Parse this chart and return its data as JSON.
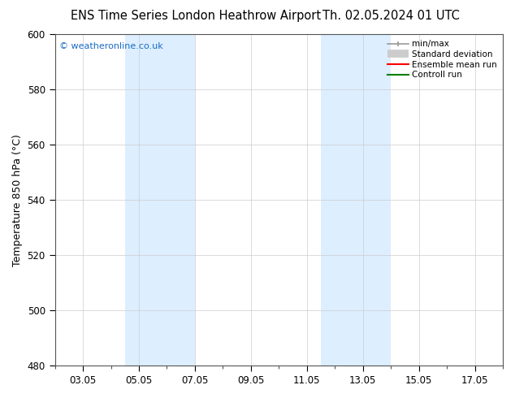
{
  "title_left": "ENS Time Series London Heathrow Airport",
  "title_right": "Th. 02.05.2024 01 UTC",
  "ylabel": "Temperature 850 hPa (°C)",
  "ylim": [
    480,
    600
  ],
  "yticks": [
    480,
    500,
    520,
    540,
    560,
    580,
    600
  ],
  "xtick_labels": [
    "03.05",
    "05.05",
    "07.05",
    "09.05",
    "11.05",
    "13.05",
    "15.05",
    "17.05"
  ],
  "xtick_positions": [
    2,
    4,
    6,
    8,
    10,
    12,
    14,
    16
  ],
  "xlim": [
    1,
    17
  ],
  "shaded_bands": [
    {
      "xstart": 3.5,
      "xend": 6.0,
      "color": "#ddeeff"
    },
    {
      "xstart": 10.5,
      "xend": 13.0,
      "color": "#ddeeff"
    }
  ],
  "watermark": "© weatheronline.co.uk",
  "watermark_color": "#1a6bc4",
  "legend_labels": [
    "min/max",
    "Standard deviation",
    "Ensemble mean run",
    "Controll run"
  ],
  "legend_colors": [
    "#999999",
    "#cccccc",
    "#ff0000",
    "#008000"
  ],
  "background_color": "#ffffff",
  "plot_bg_color": "#ffffff",
  "title_fontsize": 10.5,
  "axis_fontsize": 8.5,
  "ylabel_fontsize": 9
}
